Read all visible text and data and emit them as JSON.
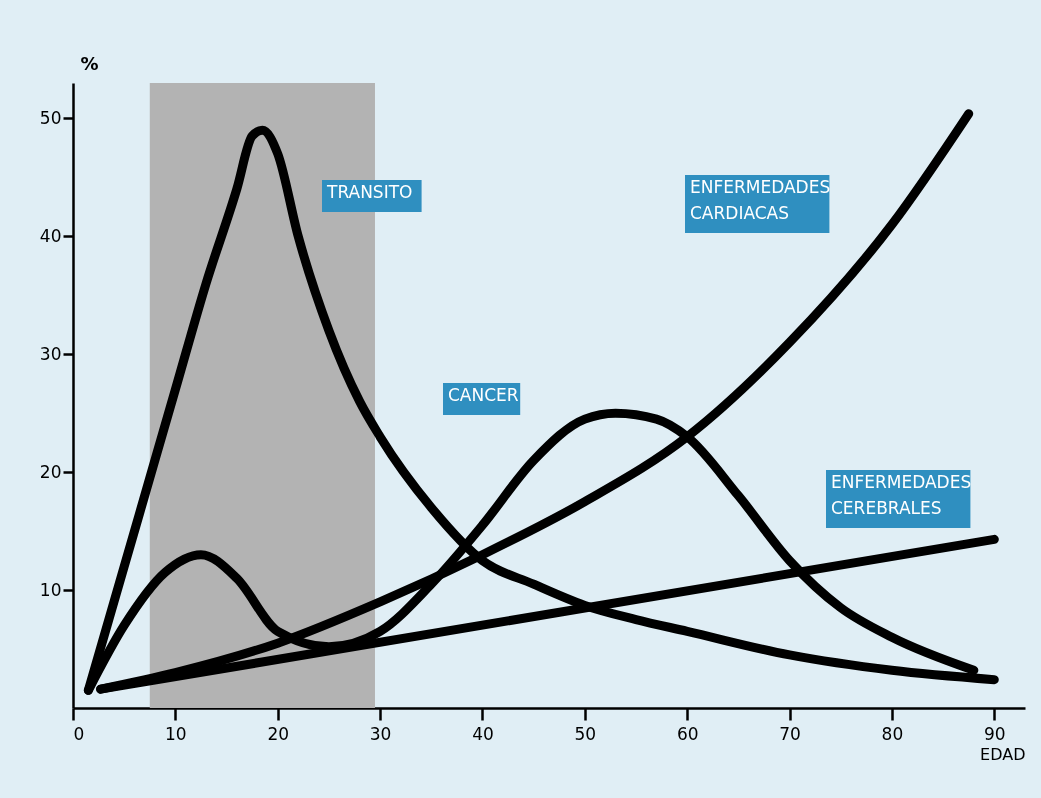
{
  "chart_data": {
    "type": "line",
    "xlabel": "EDAD",
    "ylabel": "%",
    "xlim": [
      0,
      93
    ],
    "ylim": [
      0,
      53
    ],
    "xticks": [
      0,
      10,
      20,
      30,
      40,
      50,
      60,
      70,
      80,
      90
    ],
    "yticks": [
      10,
      20,
      30,
      40,
      50
    ],
    "grid": false,
    "line_style": "solid",
    "bands": [
      {
        "axis": "x",
        "from": 7.5,
        "to": 29.5,
        "color": "#b3b3b3"
      }
    ],
    "series": [
      {
        "name": "TRANSITO",
        "color": "#000000",
        "x": [
          1.5,
          5,
          8,
          10,
          13,
          16,
          17.5,
          18.5,
          20,
          22,
          25,
          28,
          30,
          35,
          40,
          45,
          50,
          55,
          60,
          70,
          80,
          90
        ],
        "values": [
          1.5,
          12,
          21,
          27,
          36,
          44,
          48.5,
          49,
          47,
          40,
          32,
          26,
          23,
          17,
          12.5,
          10.5,
          8.7,
          7.5,
          6.5,
          4.5,
          3.2,
          2.4
        ]
      },
      {
        "name": "CANCER",
        "color": "#000000",
        "x": [
          1.5,
          5,
          9,
          12.5,
          16,
          20,
          25,
          30,
          35,
          40,
          45,
          50,
          53,
          57,
          60,
          65,
          70,
          75,
          80,
          88
        ],
        "values": [
          1.5,
          7,
          11.5,
          13,
          11,
          6.5,
          5.2,
          6.5,
          10.5,
          15.5,
          21,
          24.5,
          25,
          24.5,
          23,
          18,
          12.5,
          8.5,
          6,
          3.2
        ]
      },
      {
        "name": "ENFERMEDADES\nCARDIACAS",
        "color": "#000000",
        "x": [
          2.7,
          10,
          20,
          30,
          40,
          50,
          60,
          70,
          80,
          87.5
        ],
        "values": [
          1.6,
          3,
          5.5,
          9,
          13,
          17.5,
          23,
          31,
          41,
          50.4
        ]
      },
      {
        "name": "ENFERMEDADES\nCEREBRALES",
        "color": "#000000",
        "x": [
          2.7,
          90
        ],
        "values": [
          1.6,
          14.3
        ]
      }
    ]
  }
}
